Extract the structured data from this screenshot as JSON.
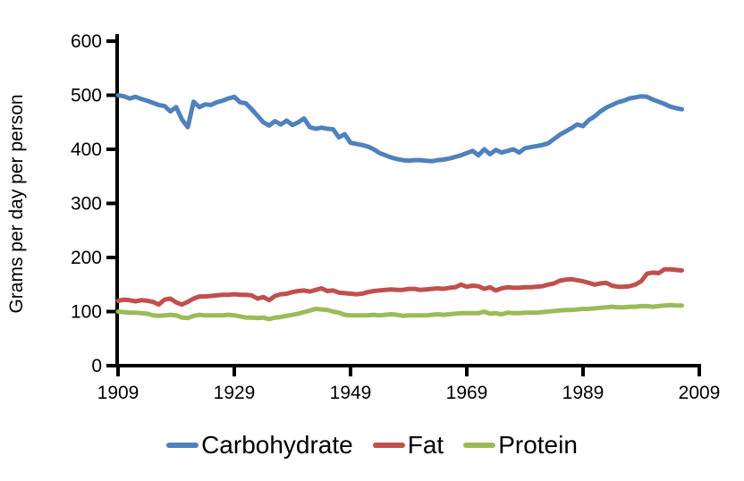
{
  "chart_data": {
    "type": "line",
    "title": "",
    "xlabel": "",
    "ylabel": "Grams per day per person",
    "xlim": [
      1909,
      2009
    ],
    "ylim": [
      0,
      600
    ],
    "xticks": [
      1909,
      1929,
      1949,
      1969,
      1989,
      2009
    ],
    "yticks": [
      0,
      100,
      200,
      300,
      400,
      500,
      600
    ],
    "grid": false,
    "legend_position": "bottom",
    "years": [
      1909,
      1910,
      1911,
      1912,
      1913,
      1914,
      1915,
      1916,
      1917,
      1918,
      1919,
      1920,
      1921,
      1922,
      1923,
      1924,
      1925,
      1926,
      1927,
      1928,
      1929,
      1930,
      1931,
      1932,
      1933,
      1934,
      1935,
      1936,
      1937,
      1938,
      1939,
      1940,
      1941,
      1942,
      1943,
      1944,
      1945,
      1946,
      1947,
      1948,
      1949,
      1950,
      1951,
      1952,
      1953,
      1954,
      1955,
      1956,
      1957,
      1958,
      1959,
      1960,
      1961,
      1962,
      1963,
      1964,
      1965,
      1966,
      1967,
      1968,
      1969,
      1970,
      1971,
      1972,
      1973,
      1974,
      1975,
      1976,
      1977,
      1978,
      1979,
      1980,
      1981,
      1982,
      1983,
      1984,
      1985,
      1986,
      1987,
      1988,
      1989,
      1990,
      1991,
      1992,
      1993,
      1994,
      1995,
      1996,
      1997,
      1998,
      1999,
      2000,
      2001,
      2002,
      2003,
      2004,
      2005,
      2006
    ],
    "series": [
      {
        "name": "Carbohydrate",
        "color": "#4F81BD",
        "values": [
          500,
          498,
          494,
          497,
          493,
          490,
          486,
          482,
          480,
          470,
          478,
          455,
          441,
          488,
          478,
          483,
          482,
          487,
          490,
          494,
          497,
          487,
          485,
          474,
          462,
          450,
          444,
          452,
          446,
          453,
          445,
          450,
          457,
          441,
          438,
          440,
          438,
          437,
          422,
          428,
          412,
          410,
          408,
          405,
          400,
          393,
          389,
          385,
          382,
          380,
          379,
          380,
          380,
          379,
          378,
          380,
          381,
          383,
          386,
          389,
          393,
          397,
          389,
          400,
          391,
          399,
          394,
          397,
          400,
          394,
          402,
          404,
          406,
          408,
          411,
          419,
          427,
          433,
          439,
          446,
          443,
          454,
          461,
          470,
          477,
          482,
          487,
          490,
          494,
          496,
          498,
          497,
          492,
          488,
          484,
          479,
          476,
          474
        ]
      },
      {
        "name": "Fat",
        "color": "#C0504D",
        "values": [
          120,
          122,
          121,
          119,
          121,
          120,
          118,
          113,
          122,
          124,
          117,
          113,
          118,
          124,
          128,
          128,
          129,
          130,
          131,
          131,
          132,
          131,
          131,
          130,
          124,
          127,
          121,
          129,
          132,
          133,
          136,
          138,
          139,
          137,
          140,
          143,
          138,
          139,
          135,
          134,
          133,
          132,
          133,
          136,
          138,
          139,
          140,
          141,
          140,
          140,
          142,
          142,
          140,
          141,
          142,
          143,
          142,
          144,
          145,
          150,
          146,
          148,
          147,
          142,
          145,
          139,
          143,
          145,
          144,
          144,
          145,
          145,
          146,
          147,
          150,
          152,
          157,
          159,
          160,
          158,
          156,
          153,
          150,
          152,
          153,
          148,
          146,
          146,
          147,
          150,
          156,
          170,
          172,
          171,
          178,
          178,
          177,
          176
        ]
      },
      {
        "name": "Protein",
        "color": "#9BBB59",
        "values": [
          100,
          99,
          98,
          98,
          97,
          96,
          93,
          92,
          93,
          94,
          93,
          89,
          88,
          92,
          94,
          93,
          93,
          93,
          93,
          94,
          93,
          91,
          89,
          89,
          88,
          89,
          86,
          89,
          90,
          92,
          94,
          96,
          99,
          102,
          105,
          104,
          103,
          100,
          98,
          94,
          93,
          93,
          93,
          93,
          94,
          93,
          94,
          95,
          94,
          92,
          93,
          93,
          93,
          93,
          94,
          95,
          94,
          95,
          96,
          97,
          97,
          97,
          97,
          100,
          96,
          97,
          95,
          98,
          97,
          97,
          98,
          98,
          98,
          99,
          100,
          101,
          102,
          103,
          103,
          104,
          105,
          105,
          106,
          107,
          108,
          109,
          108,
          108,
          109,
          109,
          110,
          110,
          109,
          110,
          111,
          112,
          111,
          111
        ]
      }
    ]
  },
  "axis": {
    "color": "#000000"
  }
}
